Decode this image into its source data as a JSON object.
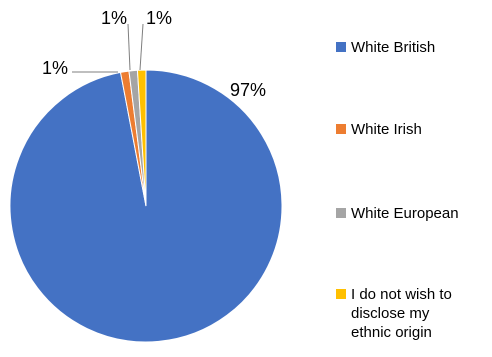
{
  "chart_data": {
    "type": "pie",
    "title": "",
    "slices": [
      {
        "label": "White British",
        "value": 97,
        "data_label": "97%",
        "color": "#4472C4"
      },
      {
        "label": "White Irish",
        "value": 1,
        "data_label": "1%",
        "color": "#ED7D31"
      },
      {
        "label": "White European",
        "value": 1,
        "data_label": "1%",
        "color": "#A5A5A5"
      },
      {
        "label": "I do not wish to\ndisclose my\nethnic origin",
        "value": 1,
        "data_label": "1%",
        "color": "#FFC000"
      }
    ],
    "legend_position": "right"
  }
}
